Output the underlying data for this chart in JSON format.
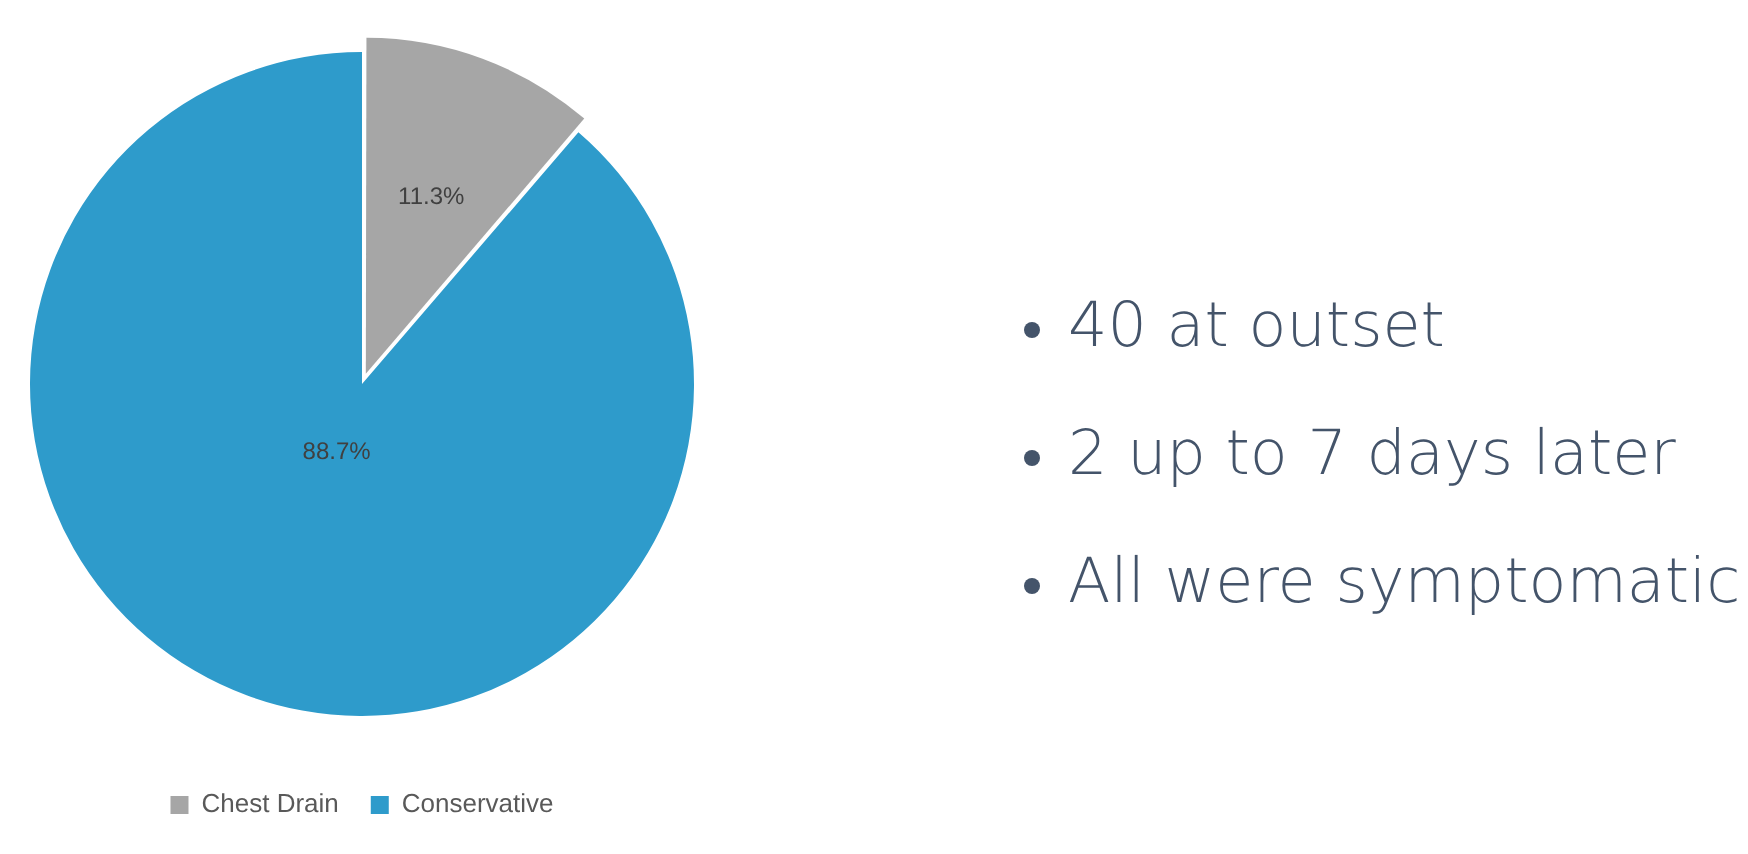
{
  "chart_data": {
    "type": "pie",
    "categories": [
      "Chest Drain",
      "Conservative"
    ],
    "values": [
      11.3,
      88.7
    ],
    "colors": [
      "#a6a6a6",
      "#2e9bcb"
    ],
    "value_labels": [
      "11.3%",
      "88.7%"
    ],
    "legend": "bottom",
    "annotations": [
      "40 at outset",
      "2 up to 7 days later",
      "All were symptomatic"
    ]
  }
}
